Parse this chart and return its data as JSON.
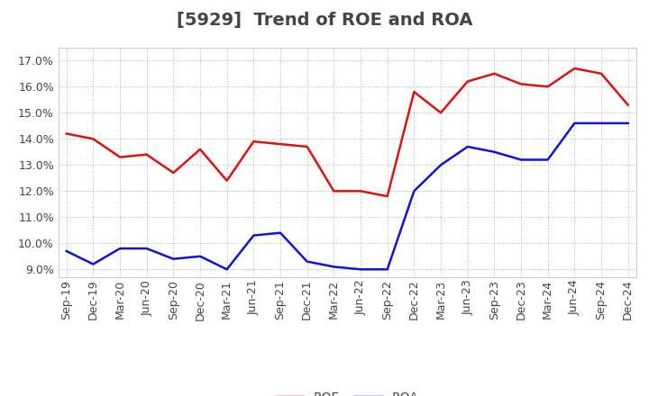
{
  "title": "[5929]  Trend of ROE and ROA",
  "x_labels": [
    "Sep-19",
    "Dec-19",
    "Mar-20",
    "Jun-20",
    "Sep-20",
    "Dec-20",
    "Mar-21",
    "Jun-21",
    "Sep-21",
    "Dec-21",
    "Mar-22",
    "Jun-22",
    "Sep-22",
    "Dec-22",
    "Mar-23",
    "Jun-23",
    "Sep-23",
    "Dec-23",
    "Mar-24",
    "Jun-24",
    "Sep-24",
    "Dec-24"
  ],
  "ROE": [
    14.2,
    14.0,
    13.3,
    13.4,
    12.7,
    13.6,
    12.4,
    13.9,
    13.8,
    13.7,
    12.0,
    12.0,
    11.8,
    15.8,
    15.0,
    16.2,
    16.5,
    16.1,
    16.0,
    16.7,
    16.5,
    15.3
  ],
  "ROA": [
    9.7,
    9.2,
    9.8,
    9.8,
    9.4,
    9.5,
    9.0,
    10.3,
    10.4,
    9.3,
    9.1,
    9.0,
    9.0,
    12.0,
    13.0,
    13.7,
    13.5,
    13.2,
    13.2,
    14.6,
    14.6,
    14.6
  ],
  "roe_color": "#dd1111",
  "roa_color": "#1111dd",
  "ylim_min": 8.7,
  "ylim_max": 17.5,
  "yticks": [
    9.0,
    10.0,
    11.0,
    12.0,
    13.0,
    14.0,
    15.0,
    16.0,
    17.0
  ],
  "background_color": "#ffffff",
  "grid_color": "#999999",
  "text_color": "#444444",
  "legend_roe": "ROE",
  "legend_roa": "ROA",
  "title_fontsize": 14,
  "tick_fontsize": 9,
  "legend_fontsize": 10
}
